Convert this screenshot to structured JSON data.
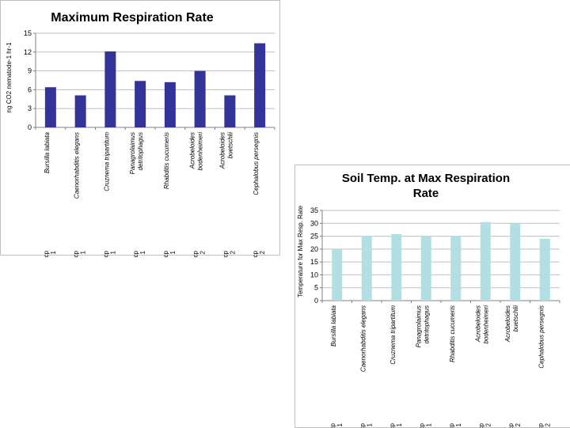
{
  "chart_data": [
    {
      "type": "bar",
      "title": "Maximum Respiration Rate",
      "ylabel": "ng CO2 nematode-1 hr-1",
      "xlabel": "",
      "ylim": [
        0,
        15
      ],
      "yticks": [
        0,
        3,
        6,
        9,
        12,
        15
      ],
      "bar_color": "#33339a",
      "categories": [
        {
          "species": "Bursilla labiata",
          "cp": "cp 1"
        },
        {
          "species": "Caenorhabditis elegans",
          "cp": "cp 1"
        },
        {
          "species": "Cruznema tripartitum",
          "cp": "cp 1"
        },
        {
          "species": "Panagrolaimus detritophagus",
          "cp": "cp 1"
        },
        {
          "species": "Rhabditis cucumeris",
          "cp": "cp 1"
        },
        {
          "species": "Acrobeloides bodenheimeri",
          "cp": "cp 2"
        },
        {
          "species": "Acrobeloides buetschlii",
          "cp": "cp 2"
        },
        {
          "species": "Cephalobus persegnis",
          "cp": "cp 2"
        }
      ],
      "values": [
        6.4,
        5.1,
        12.1,
        7.4,
        7.2,
        9.0,
        5.1,
        13.4
      ]
    },
    {
      "type": "bar",
      "title": "Soil Temp. at Max Respiration Rate",
      "ylabel": "Temperature for Max Resp. Rate",
      "xlabel": "",
      "ylim": [
        0,
        35
      ],
      "yticks": [
        0,
        5,
        10,
        15,
        20,
        25,
        30,
        35
      ],
      "bar_color": "#b2dfe3",
      "categories": [
        {
          "species": "Bursilla labiata",
          "cp": "cp 1"
        },
        {
          "species": "Caenorhabditis elegans",
          "cp": "cp 1"
        },
        {
          "species": "Cruznema tripartitum",
          "cp": "cp 1"
        },
        {
          "species": "Panagrolaimus detritophagus",
          "cp": "cp 1"
        },
        {
          "species": "Rhabditis cucumeris",
          "cp": "cp 1"
        },
        {
          "species": "Acrobeloides bodenheimeri",
          "cp": "cp 2"
        },
        {
          "species": "Acrobeloides buetschlii",
          "cp": "cp 2"
        },
        {
          "species": "Cephalobus persegnis",
          "cp": "cp 2"
        }
      ],
      "values": [
        20,
        25,
        25.8,
        25,
        25,
        30.5,
        30,
        24
      ]
    }
  ]
}
